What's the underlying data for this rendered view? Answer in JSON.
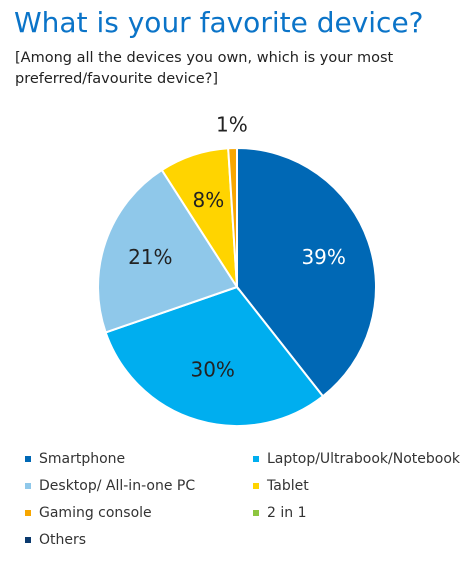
{
  "chart_data": {
    "type": "pie",
    "title": "What is your favorite device?",
    "subtitle": "[Among all the devices you own, which is your most preferred/favourite device?]",
    "categories": [
      "Smartphone",
      "Laptop/Ultrabook/Notebook",
      "Desktop/ All-in-one PC",
      "Tablet",
      "Gaming console",
      "2 in 1",
      "Others"
    ],
    "values": [
      39,
      30,
      21,
      8,
      1,
      0,
      0
    ],
    "data_labels": [
      "39%",
      "30%",
      "21%",
      "8%",
      "1%",
      "",
      ""
    ],
    "colors": [
      "#0068b5",
      "#00aeef",
      "#8fc8ea",
      "#ffd400",
      "#f7a600",
      "#8dc63f",
      "#0b3a6e"
    ],
    "legend_position": "bottom"
  }
}
